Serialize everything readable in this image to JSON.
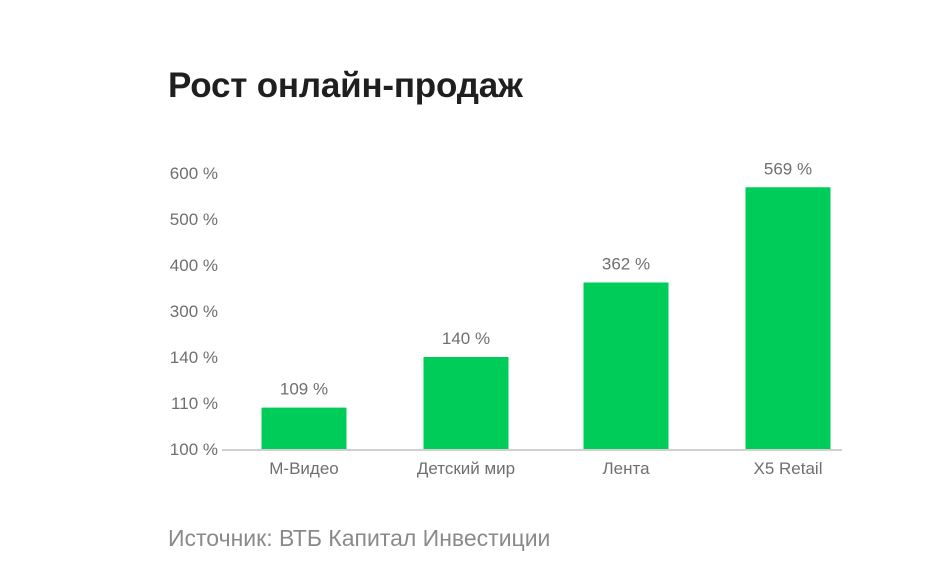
{
  "title": "Рост онлайн-продаж",
  "source": "Источник: ВТБ Капитал Инвестиции",
  "chart_data": {
    "type": "bar",
    "title": "Рост онлайн-продаж",
    "categories": [
      "М-Видео",
      "Детский мир",
      "Лента",
      "X5 Retail"
    ],
    "values": [
      109,
      140,
      362,
      569
    ],
    "value_labels": [
      "109 %",
      "140 %",
      "362 %",
      "569 %"
    ],
    "y_tick_labels": [
      "100 %",
      "110 %",
      "140 %",
      "300 %",
      "400 %",
      "500 %",
      "600 %"
    ],
    "y_scale_note": "non-uniform axis ticks",
    "xlabel": "",
    "ylabel": "",
    "grid": false,
    "legend": "none",
    "bar_color": "#00cc5a",
    "axis_color": "#d0d0d0",
    "label_color": "#6f6f6f"
  }
}
